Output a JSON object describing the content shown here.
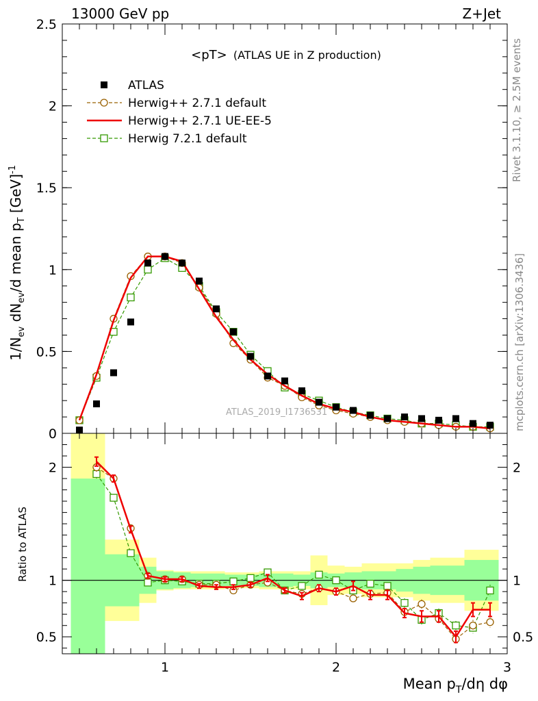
{
  "header": {
    "left": "13000 GeV pp",
    "right": "Z+Jet"
  },
  "side_labels": {
    "rivet": "Rivet 3.1.10, ≥ 2.5M events",
    "mcplots": "mcplots.cern.ch [arXiv:1306.3436]"
  },
  "chart_data": [
    {
      "panel": "main",
      "type": "scatter",
      "title": "<pT> (ATLAS UE in Z production)",
      "title_parts": {
        "main": "<pT>",
        "sub": "(ATLAS UE in Z production)"
      },
      "watermark": "ATLAS_2019_I1736531",
      "ylabel": "1/N_ev dN_ev/d mean p_T [GeV]^-1",
      "ylabel_parts": {
        "a": "1/N",
        "a_sub": "ev",
        "b": " dN",
        "b_sub": "ev",
        "c": "/d mean p",
        "c_sub": "T",
        "d": " [GeV]",
        "d_sup": "-1"
      },
      "xlim": [
        0.4,
        3.0
      ],
      "ylim": [
        0,
        2.5
      ],
      "yticks": [
        0,
        0.5,
        1,
        1.5,
        2,
        2.5
      ],
      "ytick_labels": [
        "0",
        "0.5",
        "1",
        "1.5",
        "2",
        "2.5"
      ],
      "legend_position": "top-left",
      "series": [
        {
          "name": "ATLAS",
          "style": "data",
          "color": "#000000",
          "marker": "filled-square",
          "x": [
            0.5,
            0.6,
            0.7,
            0.8,
            0.9,
            1.0,
            1.1,
            1.2,
            1.3,
            1.4,
            1.5,
            1.6,
            1.7,
            1.8,
            1.9,
            2.0,
            2.1,
            2.2,
            2.3,
            2.4,
            2.5,
            2.6,
            2.7,
            2.8,
            2.9
          ],
          "y": [
            0.02,
            0.18,
            0.37,
            0.68,
            1.04,
            1.08,
            1.04,
            0.93,
            0.76,
            0.62,
            0.47,
            0.35,
            0.32,
            0.26,
            0.19,
            0.16,
            0.14,
            0.11,
            0.09,
            0.1,
            0.09,
            0.08,
            0.09,
            0.06,
            0.05
          ]
        },
        {
          "name": "Herwig++ 2.7.1 default",
          "style": "dashed",
          "color": "#996000",
          "marker": "open-circle",
          "x": [
            0.5,
            0.6,
            0.7,
            0.8,
            0.9,
            1.0,
            1.1,
            1.2,
            1.3,
            1.4,
            1.5,
            1.6,
            1.7,
            1.8,
            1.9,
            2.0,
            2.1,
            2.2,
            2.3,
            2.4,
            2.5,
            2.6,
            2.7,
            2.8,
            2.9
          ],
          "y": [
            0.08,
            0.35,
            0.7,
            0.96,
            1.08,
            1.08,
            1.04,
            0.89,
            0.73,
            0.55,
            0.45,
            0.34,
            0.29,
            0.22,
            0.17,
            0.14,
            0.12,
            0.1,
            0.08,
            0.07,
            0.06,
            0.05,
            0.04,
            0.04,
            0.03
          ]
        },
        {
          "name": "Herwig++ 2.7.1 UE-EE-5",
          "style": "solid",
          "color": "#ee0000",
          "marker": "none",
          "x": [
            0.5,
            0.6,
            0.7,
            0.8,
            0.9,
            1.0,
            1.1,
            1.2,
            1.3,
            1.4,
            1.5,
            1.6,
            1.7,
            1.8,
            1.9,
            2.0,
            2.1,
            2.2,
            2.3,
            2.4,
            2.5,
            2.6,
            2.7,
            2.8,
            2.9
          ],
          "y": [
            0.08,
            0.36,
            0.69,
            0.95,
            1.08,
            1.08,
            1.05,
            0.88,
            0.71,
            0.57,
            0.45,
            0.36,
            0.29,
            0.23,
            0.18,
            0.15,
            0.13,
            0.1,
            0.08,
            0.07,
            0.06,
            0.05,
            0.04,
            0.04,
            0.03
          ]
        },
        {
          "name": "Herwig 7.2.1 default",
          "style": "dashed",
          "color": "#339900",
          "marker": "open-square",
          "x": [
            0.5,
            0.6,
            0.7,
            0.8,
            0.9,
            1.0,
            1.1,
            1.2,
            1.3,
            1.4,
            1.5,
            1.6,
            1.7,
            1.8,
            1.9,
            2.0,
            2.1,
            2.2,
            2.3,
            2.4,
            2.5,
            2.6,
            2.7,
            2.8,
            2.9
          ],
          "y": [
            0.08,
            0.34,
            0.62,
            0.83,
            1.0,
            1.07,
            1.01,
            0.9,
            0.74,
            0.62,
            0.48,
            0.38,
            0.28,
            0.24,
            0.2,
            0.16,
            0.13,
            0.11,
            0.09,
            0.08,
            0.06,
            0.06,
            0.05,
            0.04,
            0.04
          ]
        }
      ]
    },
    {
      "panel": "ratio",
      "type": "line",
      "ylabel": "Ratio to ATLAS",
      "xlabel": "Mean p_T/dη dφ",
      "xlabel_parts": {
        "a": "Mean p",
        "a_sub": "T",
        "b": "/dη dφ"
      },
      "xlim": [
        0.4,
        3.0
      ],
      "ylim": [
        0.35,
        2.3
      ],
      "xticks": [
        1,
        2,
        3
      ],
      "xtick_labels": [
        "1",
        "2",
        "3"
      ],
      "yticks": [
        0.5,
        1,
        2
      ],
      "ytick_labels": [
        "0.5",
        "1",
        "2"
      ],
      "reference_line": 1,
      "bands": {
        "bin_edges": [
          0.45,
          0.55,
          0.65,
          0.75,
          0.85,
          0.95,
          1.05,
          1.15,
          1.25,
          1.35,
          1.45,
          1.55,
          1.65,
          1.75,
          1.85,
          1.95,
          2.05,
          2.15,
          2.25,
          2.35,
          2.45,
          2.55,
          2.65,
          2.75,
          2.85,
          2.95
        ],
        "stat_color": "#99ff99",
        "total_color": "#ffff99",
        "stat_lo": [
          0.35,
          0.35,
          0.77,
          0.77,
          0.88,
          0.92,
          0.93,
          0.94,
          0.94,
          0.95,
          0.95,
          0.94,
          0.94,
          0.95,
          0.93,
          0.94,
          0.93,
          0.92,
          0.92,
          0.9,
          0.88,
          0.87,
          0.87,
          0.82,
          0.82
        ],
        "stat_hi": [
          1.9,
          1.9,
          1.23,
          1.23,
          1.12,
          1.08,
          1.07,
          1.06,
          1.06,
          1.05,
          1.05,
          1.06,
          1.06,
          1.05,
          1.07,
          1.06,
          1.07,
          1.08,
          1.08,
          1.1,
          1.12,
          1.13,
          1.13,
          1.18,
          1.18
        ],
        "total_lo": [
          0.35,
          0.35,
          0.64,
          0.64,
          0.8,
          0.91,
          0.92,
          0.92,
          0.92,
          0.93,
          0.93,
          0.92,
          0.92,
          0.92,
          0.78,
          0.87,
          0.88,
          0.85,
          0.85,
          0.85,
          0.82,
          0.8,
          0.8,
          0.73,
          0.73
        ],
        "total_hi": [
          2.3,
          2.3,
          1.36,
          1.36,
          1.2,
          1.09,
          1.08,
          1.08,
          1.08,
          1.07,
          1.07,
          1.08,
          1.08,
          1.08,
          1.22,
          1.13,
          1.12,
          1.15,
          1.15,
          1.15,
          1.18,
          1.2,
          1.2,
          1.27,
          1.27
        ]
      },
      "series": [
        {
          "name": "Herwig++ 2.7.1 default",
          "style": "dashed",
          "color": "#996000",
          "marker": "open-circle",
          "x": [
            0.6,
            0.7,
            0.8,
            0.9,
            1.0,
            1.1,
            1.2,
            1.3,
            1.4,
            1.5,
            1.6,
            1.7,
            1.8,
            1.9,
            2.0,
            2.1,
            2.2,
            2.3,
            2.4,
            2.5,
            2.6,
            2.7,
            2.8,
            2.9
          ],
          "y": [
            2.0,
            1.9,
            1.46,
            1.04,
            1.01,
            1.01,
            0.96,
            0.96,
            0.91,
            0.96,
            0.98,
            0.91,
            0.88,
            0.93,
            0.9,
            0.84,
            0.88,
            0.89,
            0.72,
            0.79,
            0.66,
            0.48,
            0.6,
            0.63
          ],
          "err": [
            0.04,
            0.03,
            0.03,
            0.02,
            0.02,
            0.02,
            0.02,
            0.02,
            0.02,
            0.02,
            0.02,
            0.02,
            0.02,
            0.02,
            0.02,
            0.03,
            0.03,
            0.03,
            0.04,
            0.04,
            0.04,
            0.04,
            0.05,
            0.05
          ]
        },
        {
          "name": "Herwig++ 2.7.1 UE-EE-5",
          "style": "solid",
          "color": "#ee0000",
          "marker": "none",
          "x": [
            0.6,
            0.7,
            0.8,
            0.9,
            1.0,
            1.1,
            1.2,
            1.3,
            1.4,
            1.5,
            1.6,
            1.7,
            1.8,
            1.9,
            2.0,
            2.1,
            2.2,
            2.3,
            2.4,
            2.5,
            2.6,
            2.7,
            2.8,
            2.9
          ],
          "y": [
            2.05,
            1.9,
            1.45,
            1.04,
            1.01,
            1.01,
            0.95,
            0.94,
            0.94,
            0.96,
            1.02,
            0.91,
            0.86,
            0.93,
            0.9,
            0.95,
            0.87,
            0.87,
            0.71,
            0.68,
            0.68,
            0.5,
            0.74,
            0.74
          ],
          "err": [
            0.04,
            0.03,
            0.03,
            0.02,
            0.02,
            0.02,
            0.02,
            0.02,
            0.02,
            0.02,
            0.03,
            0.02,
            0.03,
            0.03,
            0.03,
            0.04,
            0.04,
            0.04,
            0.04,
            0.05,
            0.05,
            0.05,
            0.06,
            0.06
          ]
        },
        {
          "name": "Herwig 7.2.1 default",
          "style": "dashed",
          "color": "#339900",
          "marker": "open-square",
          "x": [
            0.6,
            0.7,
            0.8,
            0.9,
            1.0,
            1.1,
            1.2,
            1.3,
            1.4,
            1.5,
            1.6,
            1.7,
            1.8,
            1.9,
            2.0,
            2.1,
            2.2,
            2.3,
            2.4,
            2.5,
            2.6,
            2.7,
            2.8,
            2.9
          ],
          "y": [
            1.94,
            1.73,
            1.24,
            0.98,
            1.0,
            0.99,
            0.97,
            0.97,
            0.99,
            1.02,
            1.07,
            0.91,
            0.95,
            1.05,
            1.0,
            0.91,
            0.97,
            0.95,
            0.8,
            0.65,
            0.71,
            0.6,
            0.58,
            0.91
          ],
          "err": [
            0.04,
            0.03,
            0.03,
            0.02,
            0.02,
            0.02,
            0.02,
            0.02,
            0.02,
            0.02,
            0.02,
            0.02,
            0.02,
            0.02,
            0.02,
            0.03,
            0.03,
            0.03,
            0.04,
            0.04,
            0.04,
            0.04,
            0.05,
            0.05
          ]
        }
      ]
    }
  ]
}
